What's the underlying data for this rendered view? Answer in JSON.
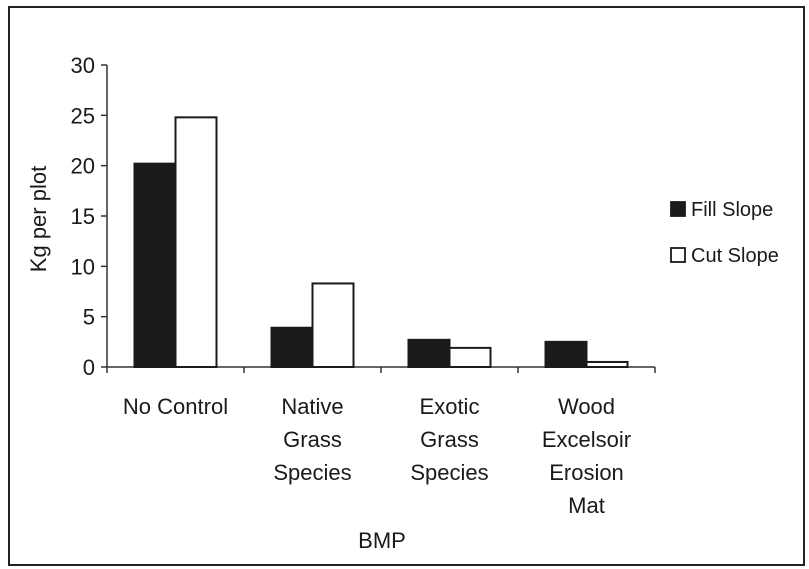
{
  "chart_data": {
    "type": "bar",
    "title": "",
    "xlabel": "BMP",
    "ylabel": "Kg per plot",
    "ylim": [
      0,
      30
    ],
    "yticks": [
      0,
      5,
      10,
      15,
      20,
      25,
      30
    ],
    "categories": [
      [
        "No Control"
      ],
      [
        "Native",
        "Grass",
        "Species"
      ],
      [
        "Exotic",
        "Grass",
        "Species"
      ],
      [
        "Wood",
        "Excelsoir",
        "Erosion",
        "Mat"
      ]
    ],
    "series": [
      {
        "name": "Fill Slope",
        "values": [
          20.2,
          3.9,
          2.7,
          2.5
        ],
        "color": "#1a1a1a"
      },
      {
        "name": "Cut Slope",
        "values": [
          24.8,
          8.3,
          1.9,
          0.5
        ],
        "color": "#ffffff"
      }
    ],
    "grid": false,
    "legend_position": "right"
  }
}
